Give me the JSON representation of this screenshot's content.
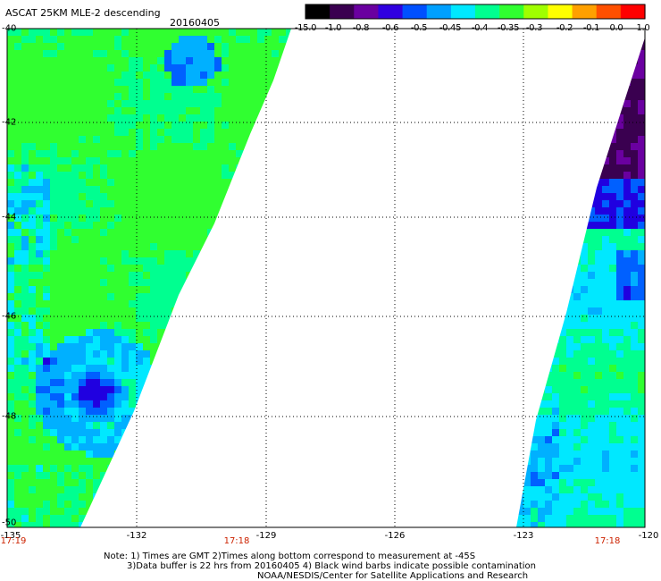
{
  "header": {
    "title": "ASCAT 25KM MLE-2 descending",
    "date": "20160405"
  },
  "colorbar": {
    "labels": [
      "-15.0",
      "-1.0",
      "-0.8",
      "-0.6",
      "-0.5",
      "-0.45",
      "-0.4",
      "-0.35",
      "-0.3",
      "-0.2",
      "-0.1",
      "0.0",
      "1.0"
    ],
    "colors": [
      "#000000",
      "#3a0050",
      "#6a00a0",
      "#3000e0",
      "#0050ff",
      "#00a0ff",
      "#00e8ff",
      "#00ff90",
      "#30ff30",
      "#a0ff00",
      "#ffff00",
      "#ffa000",
      "#ff5000",
      "#ff0000"
    ]
  },
  "map": {
    "lat_labels": [
      "-40",
      "-42",
      "-44",
      "-46",
      "-48",
      "-50"
    ],
    "lon_labels": [
      "-135",
      "-132",
      "-129",
      "-126",
      "-123",
      "-120"
    ],
    "time_labels": [
      "17:19",
      "17:18",
      "17:18"
    ],
    "grid": "dotted",
    "swaths": [
      {
        "name": "west",
        "value_range": [
          -0.8,
          -0.2
        ]
      },
      {
        "name": "east",
        "value_range": [
          -1.0,
          -0.3
        ]
      }
    ]
  },
  "notes": {
    "line1": "Note: 1) Times are GMT 2)Times along bottom correspond to measurement at -45S",
    "line2": "3)Data buffer is 22 hrs from 20160405 4) Black wind barbs indicate possible contamination",
    "line3": "NOAA/NESDIS/Center for Satellite Applications and Research"
  }
}
